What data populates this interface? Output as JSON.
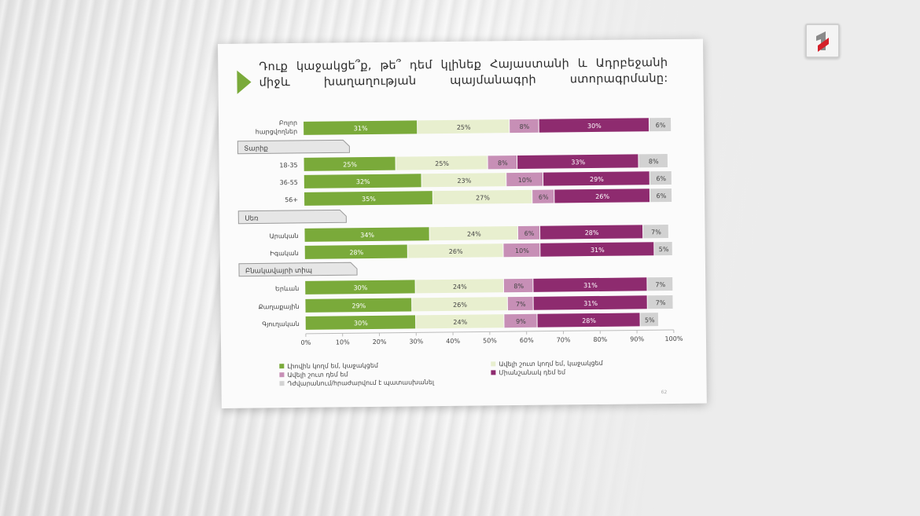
{
  "logo": {
    "icon": "channel-one-logo-icon"
  },
  "slide": {
    "title": "Դուք կաջակցե՞ք, թե՞ դեմ կլինեք Հայաստանի և Ադրբեջանի միջև խաղաղության պայմանագրի ստորագրմանը:",
    "page_number": "62"
  },
  "chart_data": {
    "type": "bar",
    "orientation": "horizontal",
    "stacked": true,
    "categories": [
      "Բոլոր հարցվողներ",
      "18-35",
      "36-55",
      "56+",
      "Արական",
      "Իգական",
      "Երևան",
      "Քաղաքային",
      "Գյուղական"
    ],
    "groups": [
      {
        "label": "Տարիք",
        "categories": [
          "18-35",
          "36-55",
          "56+"
        ]
      },
      {
        "label": "Սեռ",
        "categories": [
          "Արական",
          "Իգական"
        ]
      },
      {
        "label": "Բնակավայրի տիպ",
        "categories": [
          "Երևան",
          "Քաղաքային",
          "Գյուղական"
        ]
      }
    ],
    "series": [
      {
        "name": "Լիովին կողմ եմ, կաջակցեմ",
        "color": "#7aaa3a",
        "values": [
          31,
          25,
          32,
          35,
          34,
          28,
          30,
          29,
          30
        ],
        "labels": [
          "31%",
          "25%",
          "32%",
          "35%",
          "34%",
          "28%",
          "30%",
          "29%",
          "30%"
        ]
      },
      {
        "name": "Ավելի շուտ կողմ եմ, կաջակցեմ",
        "color": "#e8efcf",
        "values": [
          25,
          25,
          23,
          27,
          24,
          26,
          24,
          26,
          24
        ],
        "labels": [
          "25%",
          "25%",
          "23%",
          "27%",
          "24%",
          "26%",
          "24%",
          "26%",
          "24%"
        ]
      },
      {
        "name": "Ավելի շուտ դեմ եմ",
        "color": "#c78fb6",
        "values": [
          8,
          8,
          10,
          6,
          6,
          10,
          8,
          7,
          9
        ],
        "labels": [
          "8%",
          "8%",
          "10%",
          "6%",
          "6%",
          "10%",
          "8%",
          "7%",
          "9%"
        ]
      },
      {
        "name": "Միանշանակ դեմ եմ",
        "color": "#8e2b6f",
        "values": [
          30,
          33,
          29,
          26,
          28,
          31,
          31,
          31,
          28
        ],
        "labels": [
          "30%",
          "33%",
          "29%",
          "26%",
          "28%",
          "31%",
          "31%",
          "31%",
          "28%"
        ]
      },
      {
        "name": "Դժվարանում/հրաժարվում է պատասխանել",
        "color": "#d2d2d2",
        "values": [
          6,
          8,
          6,
          6,
          7,
          5,
          7,
          7,
          5
        ],
        "labels": [
          "6%",
          "8%",
          "6%",
          "6%",
          "7%",
          "5%",
          "7%",
          "7%",
          "5%"
        ]
      }
    ],
    "xlim": [
      0,
      100
    ],
    "xticks": [
      "0%",
      "10%",
      "20%",
      "30%",
      "40%",
      "50%",
      "60%",
      "70%",
      "80%",
      "90%",
      "100%"
    ],
    "legend_position": "bottom",
    "grid": false
  }
}
